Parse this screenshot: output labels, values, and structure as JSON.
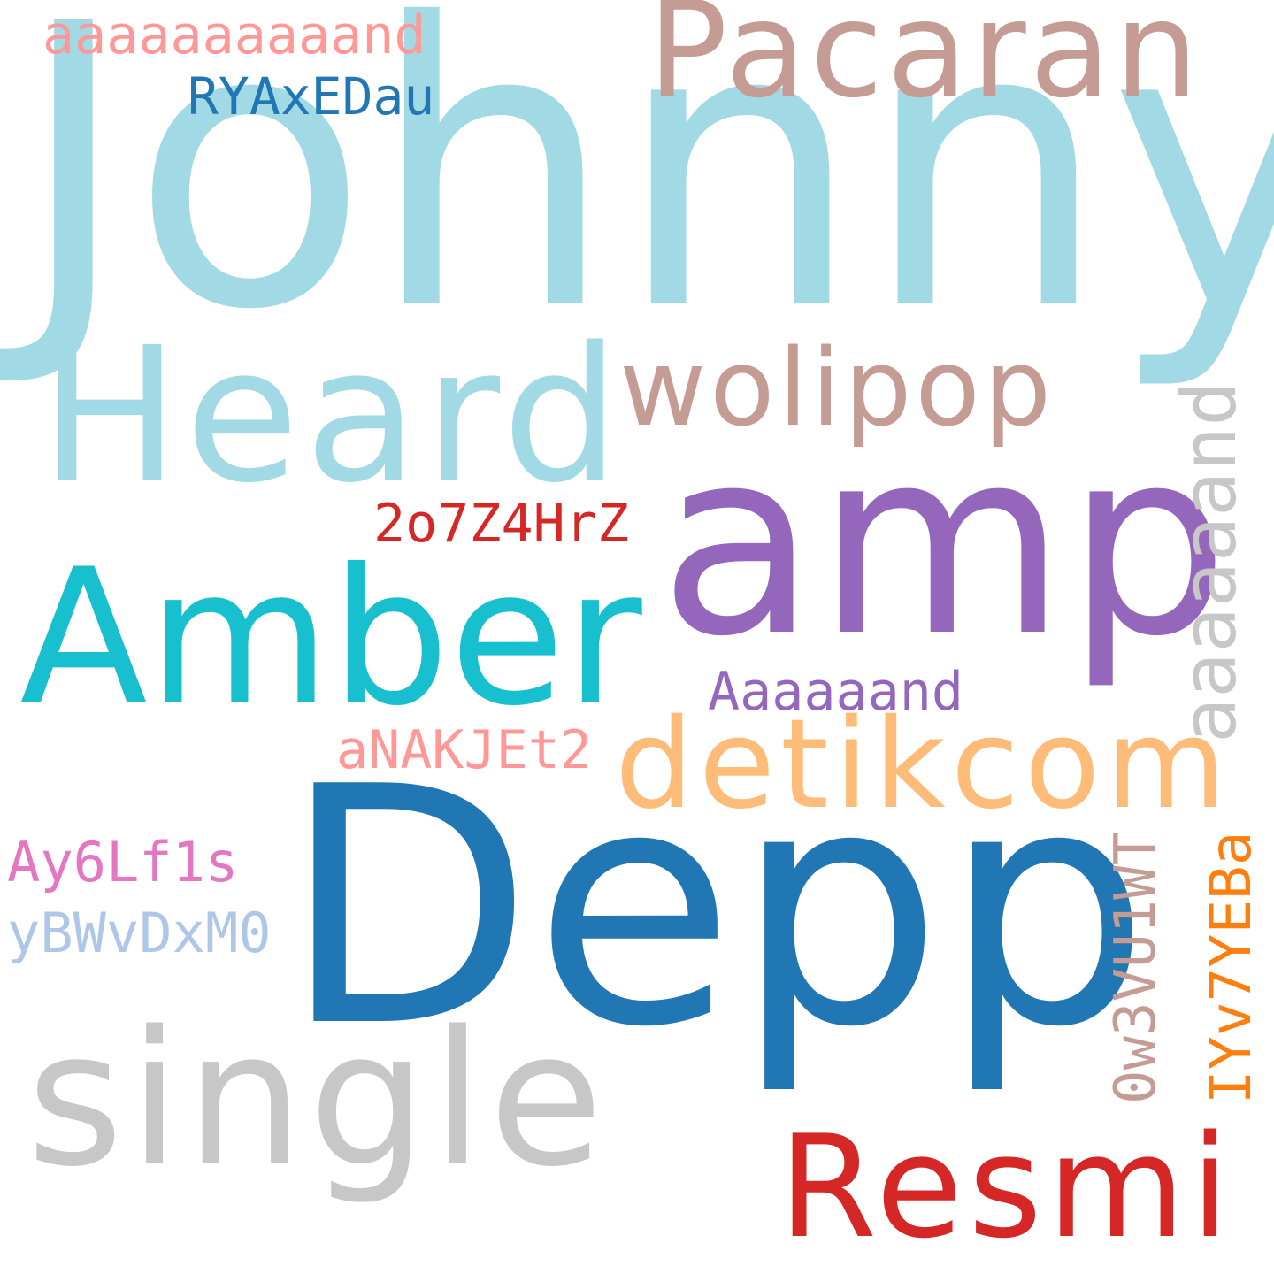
{
  "words": {
    "johnny": {
      "text": "Johnny",
      "color": "#a1d9e5"
    },
    "depp": {
      "text": "Depp",
      "color": "#2077b4"
    },
    "amp": {
      "text": "amp",
      "color": "#9467bd"
    },
    "pacaran": {
      "text": "Pacaran",
      "color": "#c49c94"
    },
    "heard": {
      "text": "Heard",
      "color": "#a1d9e5"
    },
    "amber": {
      "text": "Amber",
      "color": "#17bfcf"
    },
    "single": {
      "text": "single",
      "color": "#c7c7c7"
    },
    "resmi": {
      "text": "Resmi",
      "color": "#d62727"
    },
    "detikcom": {
      "text": "detikcom",
      "color": "#ffbb78"
    },
    "wolipop": {
      "text": "wolipop",
      "color": "#c49c94"
    },
    "aaaaaaaand_vertical": {
      "text": "aaaaaand",
      "color": "#c7c7c7"
    },
    "aaaaaaaaaand": {
      "text": "aaaaaaaaaand",
      "color": "#ff9896"
    },
    "ryaxedau": {
      "text": "RYAxEDau",
      "color": "#2077b4"
    },
    "twoo7z4hrz": {
      "text": "2o7Z4HrZ",
      "color": "#d62727"
    },
    "aaaaaand_purple": {
      "text": "Aaaaaand",
      "color": "#9467bd"
    },
    "anakjet2": {
      "text": "aNAKJEt2",
      "color": "#ff9896"
    },
    "ay6lf1s": {
      "text": "Ay6Lf1s",
      "color": "#e377c2"
    },
    "ybwvdxm0": {
      "text": "yBWvDxM0",
      "color": "#aec7e8"
    },
    "ow3vu1wt": {
      "text": "0w3VU1WT",
      "color": "#c49c94"
    },
    "iyv7yeba": {
      "text": "IYv7YEBa",
      "color": "#ff7f0e"
    }
  }
}
